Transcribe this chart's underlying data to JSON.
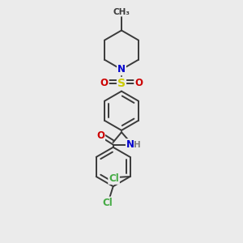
{
  "background_color": "#ebebeb",
  "atom_colors": {
    "C": "#3a3a3a",
    "N": "#0000cc",
    "O": "#cc0000",
    "S": "#cccc00",
    "Cl": "#44aa44",
    "H": "#808080"
  },
  "bond_color": "#3a3a3a",
  "bond_width": 1.4,
  "font_size_atom": 8.5,
  "font_size_small": 7.5
}
